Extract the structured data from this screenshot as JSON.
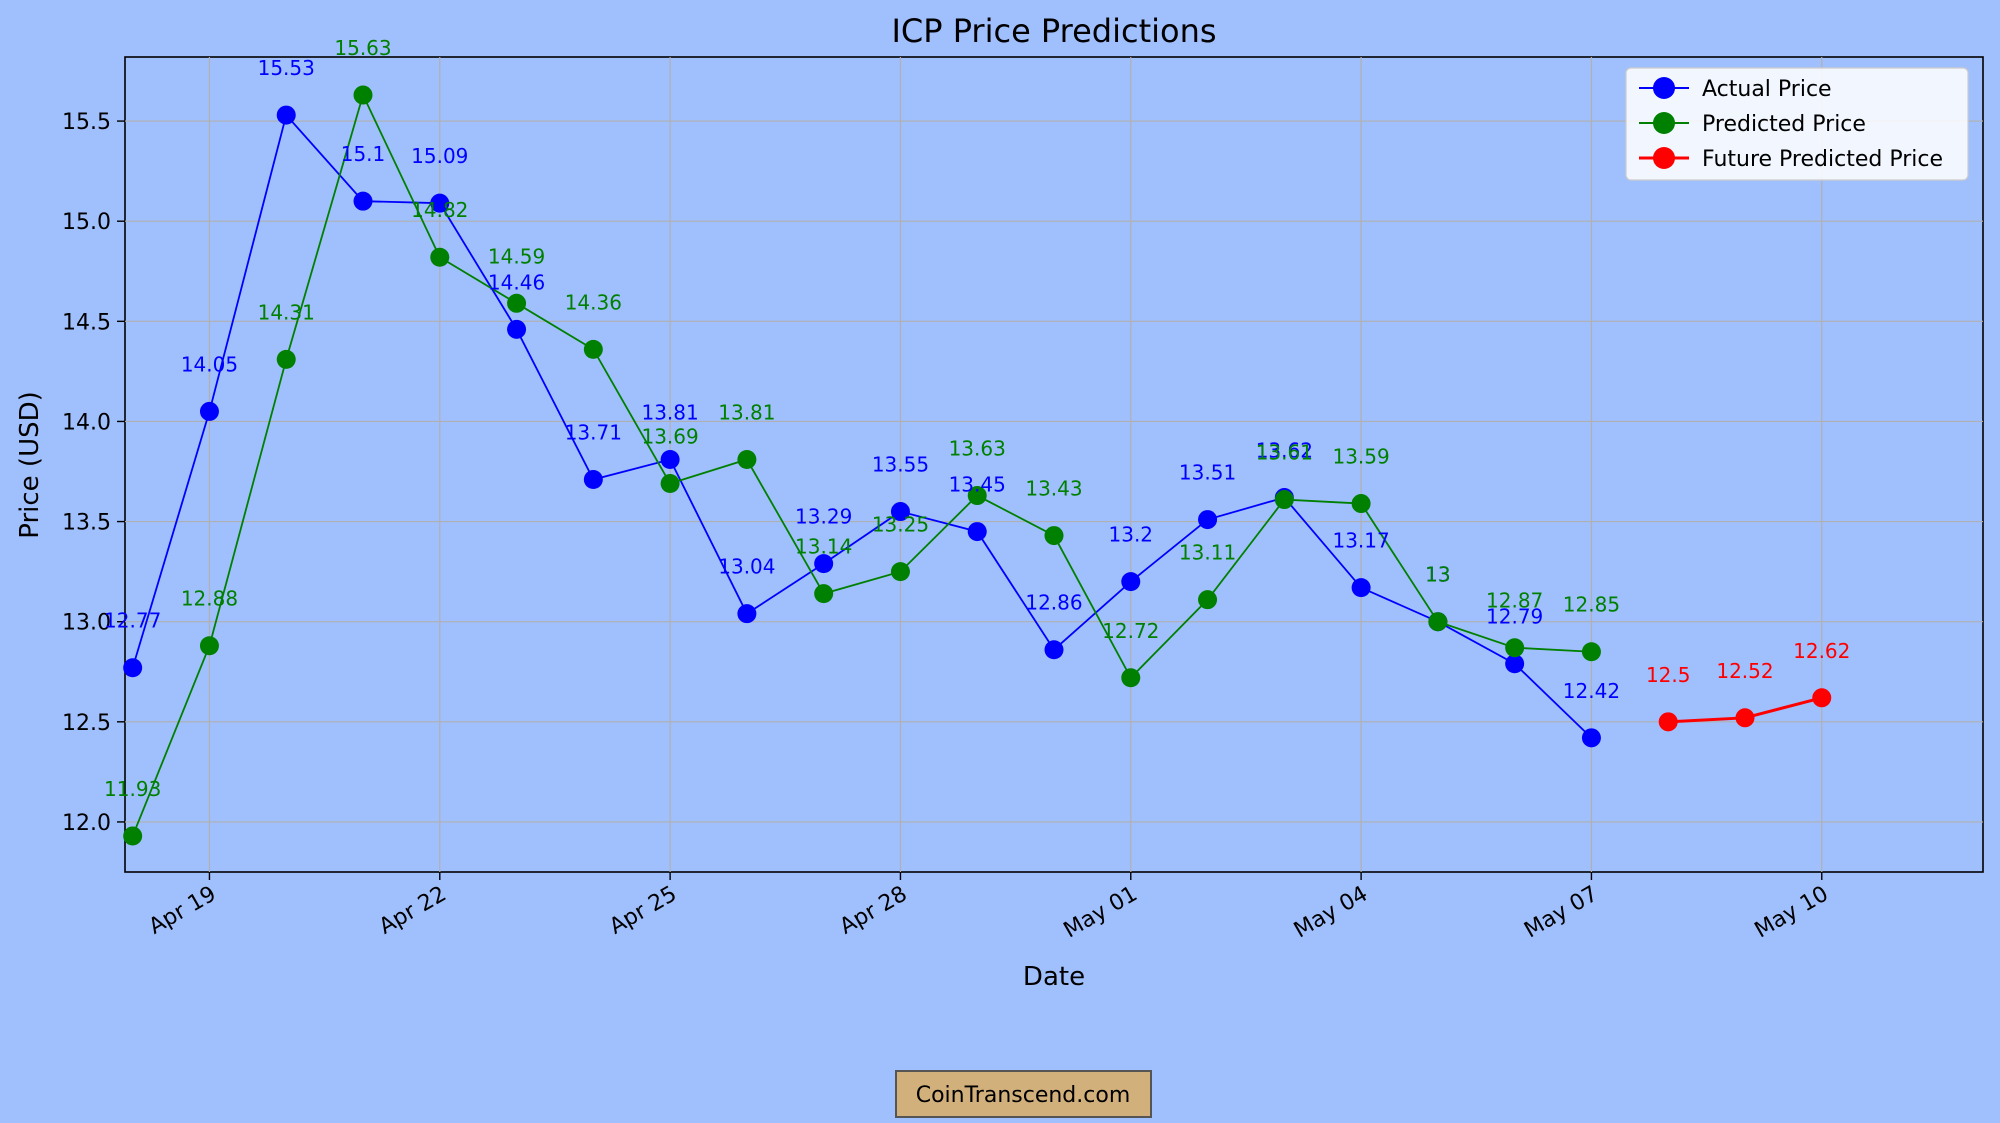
{
  "chart_data": {
    "type": "line",
    "title": "ICP Price Predictions",
    "xlabel": "Date",
    "ylabel": "Price (USD)",
    "ylim": [
      11.75,
      15.82
    ],
    "yticks": [
      12.0,
      12.5,
      13.0,
      13.5,
      14.0,
      14.5,
      15.0,
      15.5
    ],
    "ytick_labels": [
      "12.0",
      "12.5",
      "13.0",
      "13.5",
      "14.0",
      "14.5",
      "15.0",
      "15.5"
    ],
    "xlim_days": [
      -0.1,
      24.1
    ],
    "xticks": [
      1,
      4,
      7,
      10,
      13,
      16,
      19,
      22
    ],
    "xtick_labels": [
      "Apr 19",
      "Apr 22",
      "Apr 25",
      "Apr 28",
      "May 01",
      "May 04",
      "May 07",
      "May 10"
    ],
    "grid": true,
    "legend_position": "top-right",
    "series": [
      {
        "name": "Actual Price",
        "color": "#0000ff",
        "x": [
          0,
          1,
          2,
          3,
          4,
          5,
          6,
          7,
          8,
          9,
          10,
          11,
          12,
          13,
          14,
          15,
          16,
          17,
          18,
          19
        ],
        "values": [
          12.77,
          14.05,
          15.53,
          15.1,
          15.09,
          14.46,
          13.71,
          13.81,
          13.04,
          13.29,
          13.55,
          13.45,
          12.86,
          13.2,
          13.51,
          13.62,
          13.17,
          13.0,
          12.79,
          12.42
        ]
      },
      {
        "name": "Predicted Price",
        "color": "#008000",
        "x": [
          0,
          1,
          2,
          3,
          4,
          5,
          6,
          7,
          8,
          9,
          10,
          11,
          12,
          13,
          14,
          15,
          16,
          17,
          18,
          19
        ],
        "values": [
          11.93,
          12.88,
          14.31,
          15.63,
          14.82,
          14.59,
          14.36,
          13.69,
          13.81,
          13.14,
          13.25,
          13.63,
          13.43,
          12.72,
          13.11,
          13.61,
          13.59,
          13.0,
          12.87,
          12.85
        ]
      },
      {
        "name": "Future Predicted Price",
        "color": "#ff0000",
        "x": [
          20,
          21,
          22
        ],
        "values": [
          12.5,
          12.52,
          12.62
        ]
      }
    ],
    "watermark": "CoinTranscend.com"
  }
}
